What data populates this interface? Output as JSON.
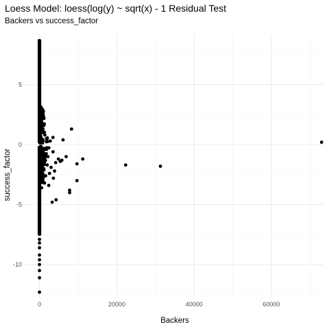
{
  "chart_data": {
    "type": "scatter",
    "title": "Loess Model: loess(log(y) ~ sqrt(x) - 1 Residual Test",
    "subtitle": "Backers vs success_factor",
    "xlabel": "Backers",
    "ylabel": "success_factor",
    "xlim": [
      -3650,
      73500
    ],
    "ylim": [
      -12.8,
      9.2
    ],
    "x_ticks": [
      0,
      20000,
      40000,
      60000
    ],
    "x_tick_labels": [
      "0",
      "20000",
      "40000",
      "60000"
    ],
    "y_ticks": [
      -10,
      -5,
      0,
      5
    ],
    "y_tick_labels": [
      "-10",
      "-5",
      "0",
      "5"
    ],
    "grid": true,
    "legend": "none",
    "point_color": "#000000",
    "points": [
      [
        73000,
        0.2
      ],
      [
        31300,
        -1.8
      ],
      [
        22300,
        -1.7
      ],
      [
        11200,
        -1.2
      ],
      [
        9700,
        -1.6
      ],
      [
        9700,
        -3.0
      ],
      [
        8300,
        1.3
      ],
      [
        7800,
        -3.8
      ],
      [
        7800,
        -4.0
      ],
      [
        6100,
        0.4
      ],
      [
        5400,
        -1.4
      ],
      [
        4900,
        -1.2
      ],
      [
        4300,
        -4.6
      ],
      [
        3600,
        -2.8
      ],
      [
        3300,
        -4.8
      ],
      [
        5800,
        -1.3
      ],
      [
        6900,
        -1.0
      ],
      [
        4200,
        -1.5
      ],
      [
        3900,
        -2.2
      ],
      [
        3500,
        -0.6
      ],
      [
        3000,
        -1.9
      ],
      [
        2600,
        -2.4
      ],
      [
        2400,
        -3.4
      ],
      [
        2200,
        -1.0
      ],
      [
        2000,
        -1.7
      ],
      [
        1800,
        -0.4
      ],
      [
        1600,
        -2.6
      ],
      [
        1500,
        -1.3
      ],
      [
        1300,
        -3.2
      ],
      [
        1200,
        -0.9
      ],
      [
        1100,
        -2.0
      ],
      [
        1000,
        -1.5
      ],
      [
        900,
        -0.5
      ],
      [
        850,
        -2.9
      ],
      [
        750,
        -1.1
      ],
      [
        700,
        -2.3
      ],
      [
        650,
        -0.3
      ],
      [
        600,
        -1.8
      ],
      [
        550,
        -3.6
      ],
      [
        500,
        -0.7
      ],
      [
        450,
        -2.5
      ],
      [
        400,
        -1.4
      ],
      [
        3500,
        0.6
      ],
      [
        2800,
        0.3
      ],
      [
        1800,
        0.5
      ],
      [
        1400,
        0.8
      ],
      [
        1000,
        1.0
      ],
      [
        800,
        0.4
      ],
      [
        600,
        1.6
      ],
      [
        500,
        2.1
      ],
      [
        400,
        1.3
      ]
    ]
  }
}
